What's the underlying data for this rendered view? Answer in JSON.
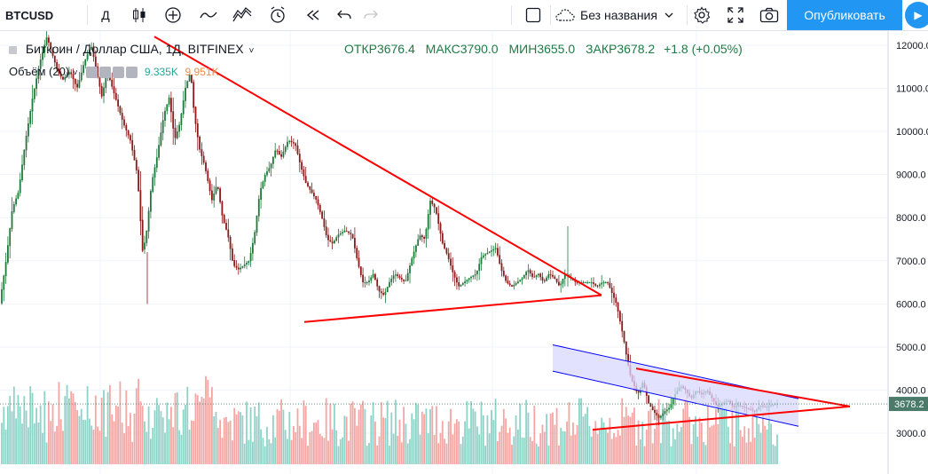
{
  "toolbar": {
    "symbol": "BTCUSD",
    "interval": "Д",
    "chart_name": "Без названия",
    "publish_label": "Опубликовать"
  },
  "legend": {
    "title": "Биткоин / Доллар США, 1Д, BITFINEX",
    "open_label": "ОТКР",
    "open": "3676.4",
    "high_label": "МАКС",
    "high": "3790.0",
    "low_label": "МИН",
    "low": "3655.0",
    "close_label": "ЗАКР",
    "close": "3678.2",
    "change": "+1.8 (+0.05%)",
    "volume_label": "Объём (20)",
    "volume_a": "9.335K",
    "volume_b": "9.951K"
  },
  "colors": {
    "up": "#26a69a",
    "down": "#ef5350",
    "candle_up": "#1f7a3a",
    "candle_down": "#8b1a1a",
    "trendline": "#ff0000",
    "channel": "#0000ff",
    "channel_fill": "#d8d8ff",
    "price_label_bg": "#4a7a6a",
    "accent": "#2196f3"
  },
  "chart_data": {
    "type": "candlestick",
    "y_axis": {
      "ylim": [
        2450,
        12300
      ],
      "ticks": [
        3000,
        4000,
        5000,
        6000,
        7000,
        8000,
        9000,
        10000,
        11000,
        12000
      ],
      "tick_labels": [
        "3000.0",
        "4000.0",
        "5000.0",
        "6000.0",
        "7000.0",
        "8000.0",
        "9000.0",
        "10000.0",
        "11000.0",
        "12000.0"
      ]
    },
    "last_price": "3678.2",
    "price_path": [
      [
        0,
        5900
      ],
      [
        8,
        7000
      ],
      [
        15,
        8200
      ],
      [
        22,
        8600
      ],
      [
        30,
        9800
      ],
      [
        38,
        10800
      ],
      [
        46,
        11600
      ],
      [
        54,
        12200
      ],
      [
        60,
        11800
      ],
      [
        66,
        11400
      ],
      [
        72,
        11200
      ],
      [
        80,
        11400
      ],
      [
        88,
        11000
      ],
      [
        96,
        11600
      ],
      [
        104,
        12000
      ],
      [
        110,
        11400
      ],
      [
        116,
        10800
      ],
      [
        122,
        11400
      ],
      [
        128,
        11000
      ],
      [
        134,
        10600
      ],
      [
        140,
        10200
      ],
      [
        148,
        9800
      ],
      [
        156,
        9000
      ],
      [
        162,
        7200
      ],
      [
        166,
        7600
      ],
      [
        172,
        8800
      ],
      [
        178,
        9400
      ],
      [
        186,
        10400
      ],
      [
        192,
        10800
      ],
      [
        198,
        9800
      ],
      [
        204,
        10200
      ],
      [
        210,
        11000
      ],
      [
        216,
        11400
      ],
      [
        220,
        10400
      ],
      [
        226,
        9600
      ],
      [
        232,
        9200
      ],
      [
        240,
        8400
      ],
      [
        246,
        8800
      ],
      [
        252,
        8000
      ],
      [
        258,
        7600
      ],
      [
        264,
        6900
      ],
      [
        270,
        6800
      ],
      [
        276,
        6900
      ],
      [
        282,
        7000
      ],
      [
        288,
        7600
      ],
      [
        294,
        8600
      ],
      [
        300,
        9000
      ],
      [
        306,
        9200
      ],
      [
        312,
        9600
      ],
      [
        318,
        9400
      ],
      [
        326,
        9800
      ],
      [
        334,
        9700
      ],
      [
        340,
        9200
      ],
      [
        346,
        8800
      ],
      [
        352,
        8600
      ],
      [
        358,
        8400
      ],
      [
        364,
        8000
      ],
      [
        370,
        7500
      ],
      [
        376,
        7400
      ],
      [
        382,
        7600
      ],
      [
        390,
        7700
      ],
      [
        398,
        7600
      ],
      [
        404,
        7000
      ],
      [
        410,
        6500
      ],
      [
        416,
        6500
      ],
      [
        422,
        6700
      ],
      [
        428,
        6300
      ],
      [
        434,
        6200
      ],
      [
        440,
        6500
      ],
      [
        446,
        6700
      ],
      [
        452,
        6600
      ],
      [
        458,
        6500
      ],
      [
        466,
        7100
      ],
      [
        474,
        7600
      ],
      [
        480,
        7500
      ],
      [
        486,
        8400
      ],
      [
        492,
        8200
      ],
      [
        500,
        7400
      ],
      [
        506,
        7100
      ],
      [
        512,
        6700
      ],
      [
        518,
        6400
      ],
      [
        524,
        6500
      ],
      [
        530,
        6600
      ],
      [
        538,
        6700
      ],
      [
        544,
        7100
      ],
      [
        552,
        7200
      ],
      [
        560,
        7300
      ],
      [
        566,
        6800
      ],
      [
        572,
        6500
      ],
      [
        578,
        6400
      ],
      [
        584,
        6500
      ],
      [
        590,
        6600
      ],
      [
        596,
        6800
      ],
      [
        602,
        6600
      ],
      [
        608,
        6700
      ],
      [
        614,
        6500
      ],
      [
        620,
        6700
      ],
      [
        626,
        6600
      ],
      [
        632,
        6400
      ],
      [
        638,
        6700
      ],
      [
        644,
        6600
      ],
      [
        650,
        6500
      ],
      [
        656,
        6500
      ],
      [
        662,
        6500
      ],
      [
        668,
        6500
      ],
      [
        674,
        6400
      ],
      [
        680,
        6500
      ],
      [
        686,
        6500
      ],
      [
        690,
        6300
      ],
      [
        696,
        6000
      ],
      [
        700,
        5600
      ],
      [
        704,
        5200
      ],
      [
        708,
        4700
      ],
      [
        712,
        4300
      ],
      [
        716,
        4100
      ],
      [
        720,
        3900
      ],
      [
        726,
        4200
      ],
      [
        732,
        3700
      ],
      [
        738,
        3500
      ],
      [
        744,
        3350
      ],
      [
        750,
        3500
      ],
      [
        756,
        3600
      ],
      [
        762,
        3900
      ],
      [
        768,
        4100
      ],
      [
        774,
        4000
      ],
      [
        780,
        3800
      ],
      [
        786,
        4000
      ],
      [
        792,
        3900
      ],
      [
        798,
        4000
      ],
      [
        804,
        3800
      ],
      [
        810,
        3600
      ],
      [
        816,
        3700
      ],
      [
        822,
        3750
      ],
      [
        828,
        3600
      ],
      [
        834,
        3650
      ],
      [
        840,
        3600
      ],
      [
        846,
        3550
      ],
      [
        852,
        3500
      ],
      [
        858,
        3650
      ],
      [
        864,
        3600
      ],
      [
        870,
        3650
      ],
      [
        876,
        3680
      ]
    ],
    "annotations": [
      {
        "type": "trendline",
        "from": [
          174,
          12200
        ],
        "to": [
          678,
          6200
        ]
      },
      {
        "type": "trendline",
        "from": [
          343,
          5580
        ],
        "to": [
          678,
          6200
        ]
      },
      {
        "type": "trendline",
        "from": [
          717,
          4500
        ],
        "to": [
          958,
          3620
        ]
      },
      {
        "type": "trendline",
        "from": [
          668,
          3080
        ],
        "to": [
          958,
          3620
        ]
      },
      {
        "type": "channel",
        "upper_from": [
          623,
          5050
        ],
        "upper_to": [
          900,
          3800
        ],
        "lower_from": [
          623,
          4440
        ],
        "lower_to": [
          900,
          3160
        ]
      }
    ]
  }
}
